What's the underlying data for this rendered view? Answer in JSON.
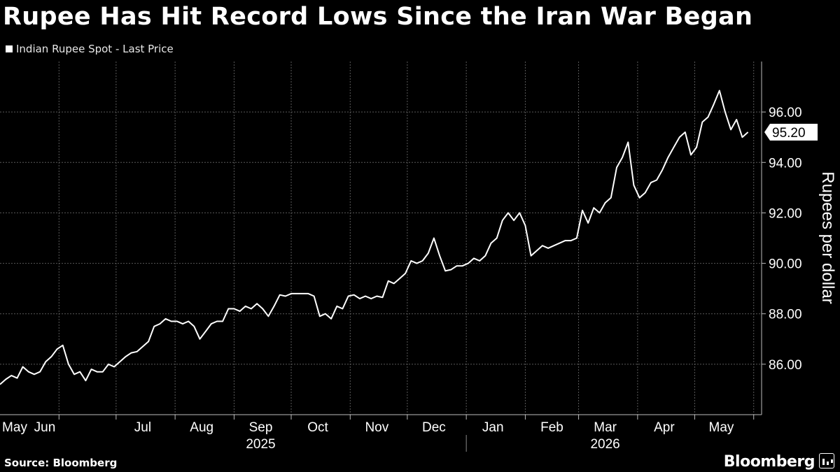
{
  "title": "Rupee Has Hit Record Lows Since the Iran War Began",
  "legend_label": "Indian Rupee Spot - Last Price",
  "source": "Source: Bloomberg",
  "brand": "Bloomberg",
  "colors": {
    "background": "#000000",
    "line": "#ffffff",
    "grid": "#5a5a5a"
  },
  "chart_data": {
    "type": "line",
    "title": "Rupee Has Hit Record Lows Since the Iran War Began",
    "ylabel": "Rupees per dollar",
    "y_position": "right",
    "ylim": [
      84.0,
      98.0
    ],
    "yticks": [
      86,
      88,
      90,
      92,
      94,
      96
    ],
    "ytick_labels": [
      "86.00",
      "88.00",
      "90.00",
      "92.00",
      "94.00",
      "96.00"
    ],
    "last_value_label": "95.20",
    "grid": true,
    "xlim": [
      "2025-05-01",
      "2026-05-31"
    ],
    "month_ticks": [
      {
        "date": "2025-05-15",
        "label": "May"
      },
      {
        "date": "2025-06-15",
        "label": "Jun"
      },
      {
        "date": "2025-07-15",
        "label": "Jul"
      },
      {
        "date": "2025-08-15",
        "label": "Aug"
      },
      {
        "date": "2025-09-15",
        "label": "Sep"
      },
      {
        "date": "2025-10-15",
        "label": "Oct"
      },
      {
        "date": "2025-11-15",
        "label": "Nov"
      },
      {
        "date": "2025-12-15",
        "label": "Dec"
      },
      {
        "date": "2026-01-15",
        "label": "Jan"
      },
      {
        "date": "2026-02-15",
        "label": "Feb"
      },
      {
        "date": "2026-03-15",
        "label": "Mar"
      },
      {
        "date": "2026-04-15",
        "label": "Apr"
      },
      {
        "date": "2026-05-15",
        "label": "May"
      }
    ],
    "year_labels": [
      {
        "date": "2025-09-15",
        "label": "2025"
      },
      {
        "date": "2026-03-15",
        "label": "2026"
      }
    ],
    "series": [
      {
        "name": "Indian Rupee Spot - Last Price",
        "points": [
          [
            "2025-05-01",
            85.2
          ],
          [
            "2025-05-04",
            85.4
          ],
          [
            "2025-05-07",
            85.55
          ],
          [
            "2025-05-10",
            85.45
          ],
          [
            "2025-05-13",
            85.9
          ],
          [
            "2025-05-16",
            85.7
          ],
          [
            "2025-05-19",
            85.6
          ],
          [
            "2025-05-22",
            85.7
          ],
          [
            "2025-05-25",
            86.1
          ],
          [
            "2025-05-28",
            86.3
          ],
          [
            "2025-05-31",
            86.6
          ],
          [
            "2025-06-03",
            86.75
          ],
          [
            "2025-06-06",
            86.0
          ],
          [
            "2025-06-09",
            85.6
          ],
          [
            "2025-06-12",
            85.7
          ],
          [
            "2025-06-15",
            85.35
          ],
          [
            "2025-06-18",
            85.8
          ],
          [
            "2025-06-21",
            85.7
          ],
          [
            "2025-06-24",
            85.7
          ],
          [
            "2025-06-27",
            86.0
          ],
          [
            "2025-06-30",
            85.9
          ],
          [
            "2025-07-03",
            86.1
          ],
          [
            "2025-07-06",
            86.3
          ],
          [
            "2025-07-09",
            86.45
          ],
          [
            "2025-07-12",
            86.5
          ],
          [
            "2025-07-15",
            86.7
          ],
          [
            "2025-07-18",
            86.9
          ],
          [
            "2025-07-21",
            87.5
          ],
          [
            "2025-07-24",
            87.6
          ],
          [
            "2025-07-27",
            87.8
          ],
          [
            "2025-07-30",
            87.7
          ],
          [
            "2025-08-02",
            87.7
          ],
          [
            "2025-08-05",
            87.6
          ],
          [
            "2025-08-08",
            87.7
          ],
          [
            "2025-08-11",
            87.5
          ],
          [
            "2025-08-14",
            87.0
          ],
          [
            "2025-08-17",
            87.3
          ],
          [
            "2025-08-20",
            87.6
          ],
          [
            "2025-08-23",
            87.7
          ],
          [
            "2025-08-26",
            87.7
          ],
          [
            "2025-08-29",
            88.2
          ],
          [
            "2025-09-01",
            88.2
          ],
          [
            "2025-09-04",
            88.1
          ],
          [
            "2025-09-07",
            88.3
          ],
          [
            "2025-09-10",
            88.2
          ],
          [
            "2025-09-13",
            88.4
          ],
          [
            "2025-09-16",
            88.2
          ],
          [
            "2025-09-19",
            87.9
          ],
          [
            "2025-09-22",
            88.3
          ],
          [
            "2025-09-25",
            88.75
          ],
          [
            "2025-09-28",
            88.7
          ],
          [
            "2025-10-01",
            88.8
          ],
          [
            "2025-10-04",
            88.8
          ],
          [
            "2025-10-07",
            88.8
          ],
          [
            "2025-10-10",
            88.8
          ],
          [
            "2025-10-13",
            88.7
          ],
          [
            "2025-10-16",
            87.9
          ],
          [
            "2025-10-19",
            88.0
          ],
          [
            "2025-10-22",
            87.8
          ],
          [
            "2025-10-25",
            88.3
          ],
          [
            "2025-10-28",
            88.2
          ],
          [
            "2025-10-31",
            88.7
          ],
          [
            "2025-11-03",
            88.75
          ],
          [
            "2025-11-06",
            88.6
          ],
          [
            "2025-11-09",
            88.7
          ],
          [
            "2025-11-12",
            88.6
          ],
          [
            "2025-11-15",
            88.7
          ],
          [
            "2025-11-18",
            88.65
          ],
          [
            "2025-11-21",
            89.3
          ],
          [
            "2025-11-24",
            89.2
          ],
          [
            "2025-11-27",
            89.4
          ],
          [
            "2025-11-30",
            89.6
          ],
          [
            "2025-12-03",
            90.1
          ],
          [
            "2025-12-06",
            90.0
          ],
          [
            "2025-12-09",
            90.1
          ],
          [
            "2025-12-12",
            90.4
          ],
          [
            "2025-12-15",
            91.0
          ],
          [
            "2025-12-18",
            90.3
          ],
          [
            "2025-12-21",
            89.7
          ],
          [
            "2025-12-24",
            89.75
          ],
          [
            "2025-12-27",
            89.9
          ],
          [
            "2025-12-30",
            89.9
          ],
          [
            "2026-01-02",
            90.0
          ],
          [
            "2026-01-05",
            90.2
          ],
          [
            "2026-01-08",
            90.1
          ],
          [
            "2026-01-11",
            90.3
          ],
          [
            "2026-01-14",
            90.8
          ],
          [
            "2026-01-17",
            91.0
          ],
          [
            "2026-01-20",
            91.7
          ],
          [
            "2026-01-23",
            92.0
          ],
          [
            "2026-01-26",
            91.7
          ],
          [
            "2026-01-29",
            92.0
          ],
          [
            "2026-02-01",
            91.5
          ],
          [
            "2026-02-04",
            90.3
          ],
          [
            "2026-02-07",
            90.5
          ],
          [
            "2026-02-10",
            90.7
          ],
          [
            "2026-02-13",
            90.6
          ],
          [
            "2026-02-16",
            90.7
          ],
          [
            "2026-02-19",
            90.8
          ],
          [
            "2026-02-22",
            90.9
          ],
          [
            "2026-02-25",
            90.9
          ],
          [
            "2026-02-28",
            91.0
          ],
          [
            "2026-03-03",
            92.1
          ],
          [
            "2026-03-06",
            91.6
          ],
          [
            "2026-03-09",
            92.2
          ],
          [
            "2026-03-12",
            92.0
          ],
          [
            "2026-03-15",
            92.4
          ],
          [
            "2026-03-18",
            92.6
          ],
          [
            "2026-03-21",
            93.8
          ],
          [
            "2026-03-24",
            94.2
          ],
          [
            "2026-03-27",
            94.8
          ],
          [
            "2026-03-30",
            93.1
          ],
          [
            "2026-04-02",
            92.6
          ],
          [
            "2026-04-05",
            92.8
          ],
          [
            "2026-04-08",
            93.2
          ],
          [
            "2026-04-11",
            93.3
          ],
          [
            "2026-04-14",
            93.7
          ],
          [
            "2026-04-17",
            94.2
          ],
          [
            "2026-04-20",
            94.6
          ],
          [
            "2026-04-23",
            95.0
          ],
          [
            "2026-04-26",
            95.2
          ],
          [
            "2026-04-29",
            94.3
          ],
          [
            "2026-05-02",
            94.6
          ],
          [
            "2026-05-05",
            95.6
          ],
          [
            "2026-05-08",
            95.8
          ],
          [
            "2026-05-11",
            96.3
          ],
          [
            "2026-05-14",
            96.85
          ],
          [
            "2026-05-17",
            96.0
          ],
          [
            "2026-05-20",
            95.3
          ],
          [
            "2026-05-23",
            95.7
          ],
          [
            "2026-05-26",
            95.0
          ],
          [
            "2026-05-29",
            95.2
          ]
        ]
      }
    ]
  }
}
